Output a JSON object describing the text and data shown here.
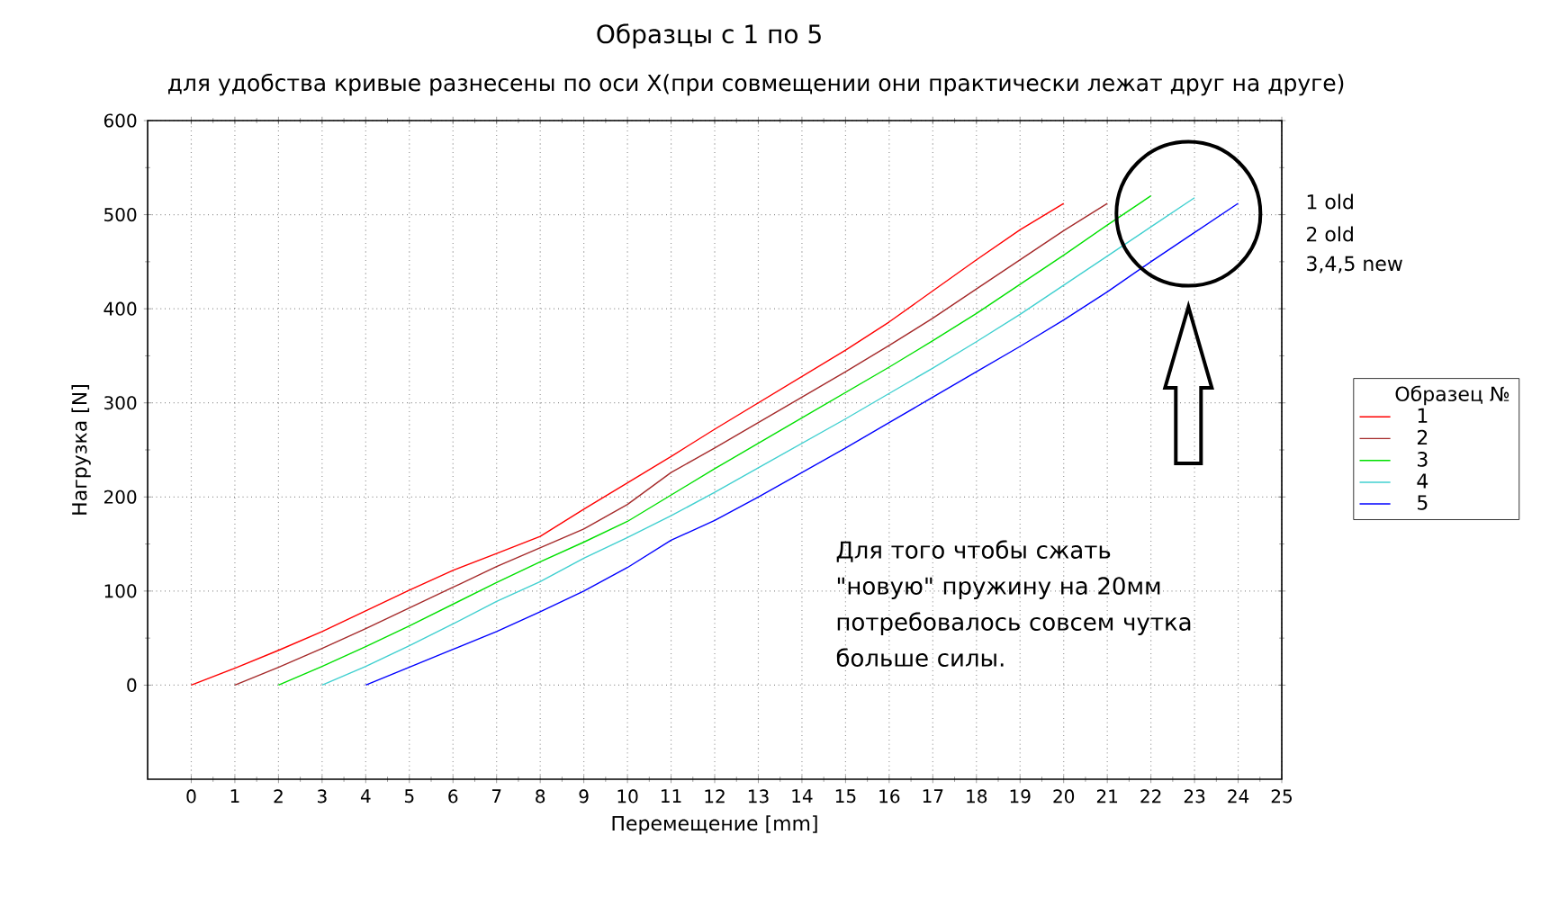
{
  "chart_data": {
    "type": "line",
    "title": "Образцы с 1 по 5",
    "subtitle": "для удобства кривые разнесены по оси X(при совмещении они практически лежат друг на друге)",
    "xlabel": "Перемещение [mm]",
    "ylabel": "Нагрузка [N]",
    "legend_title": "Образец №",
    "legend": "right",
    "grid": true,
    "marker": "none",
    "line_style": "solid",
    "xlim": [
      -1,
      25
    ],
    "xticks": [
      0,
      1,
      2,
      3,
      4,
      5,
      6,
      7,
      8,
      9,
      10,
      11,
      12,
      13,
      14,
      15,
      16,
      17,
      18,
      19,
      20,
      21,
      22,
      23,
      24,
      25
    ],
    "ylim": [
      -100,
      600
    ],
    "yticks": [
      0,
      100,
      200,
      300,
      400,
      500,
      600
    ],
    "series": [
      {
        "name": "1",
        "color": "#ff0000",
        "x": [
          0,
          1,
          2,
          3,
          4,
          5,
          6,
          7,
          8,
          9,
          10,
          11,
          12,
          13,
          14,
          15,
          16,
          17,
          18,
          19,
          20
        ],
        "values": [
          0,
          18,
          37,
          57,
          79,
          101,
          122,
          140,
          158,
          187,
          215,
          243,
          272,
          300,
          328,
          356,
          386,
          419,
          452,
          484,
          512
        ]
      },
      {
        "name": "2",
        "color": "#a52a2a",
        "x": [
          1,
          2,
          3,
          4,
          5,
          6,
          7,
          8,
          9,
          10,
          11,
          12,
          13,
          14,
          15,
          16,
          17,
          18,
          19,
          20,
          21
        ],
        "values": [
          0,
          19,
          39,
          60,
          82,
          104,
          126,
          146,
          166,
          192,
          226,
          252,
          279,
          306,
          333,
          361,
          390,
          421,
          452,
          483,
          512
        ]
      },
      {
        "name": "3",
        "color": "#00e000",
        "x": [
          2,
          3,
          4,
          5,
          6,
          7,
          8,
          9,
          10,
          11,
          12,
          13,
          14,
          15,
          16,
          17,
          18,
          19,
          20,
          21,
          22
        ],
        "values": [
          0,
          20,
          41,
          63,
          86,
          109,
          131,
          152,
          174,
          202,
          230,
          257,
          284,
          311,
          338,
          366,
          395,
          426,
          457,
          489,
          520
        ]
      },
      {
        "name": "4",
        "color": "#40d0d0",
        "x": [
          3,
          4,
          5,
          6,
          7,
          8,
          9,
          10,
          11,
          12,
          13,
          14,
          15,
          16,
          17,
          18,
          19,
          20,
          21,
          22,
          23
        ],
        "values": [
          0,
          20,
          42,
          65,
          89,
          110,
          135,
          157,
          180,
          205,
          231,
          257,
          283,
          310,
          337,
          365,
          394,
          425,
          456,
          487,
          518
        ]
      },
      {
        "name": "5",
        "color": "#0000ff",
        "x": [
          4,
          5,
          6,
          7,
          8,
          9,
          10,
          11,
          12,
          13,
          14,
          15,
          16,
          17,
          18,
          19,
          20,
          21,
          22,
          23,
          24
        ],
        "values": [
          0,
          19,
          38,
          57,
          78,
          100,
          125,
          154,
          175,
          200,
          226,
          252,
          279,
          306,
          333,
          360,
          388,
          418,
          450,
          481,
          512
        ]
      }
    ],
    "annotations": [
      "1 old",
      "2 old",
      "3,4,5 new",
      "Для того чтобы сжать \"новую\" пружину на 20мм потребовалось совсем чутка больше силы."
    ]
  }
}
